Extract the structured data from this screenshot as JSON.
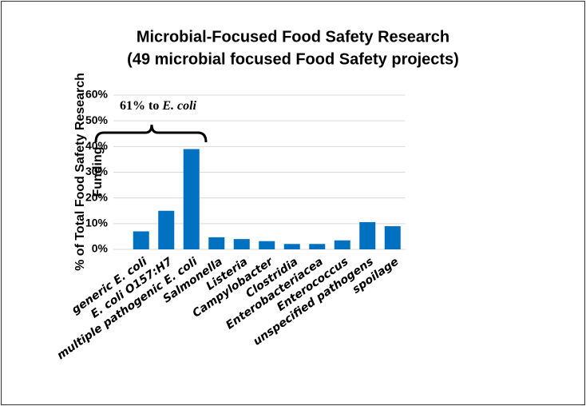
{
  "chart_data": {
    "type": "bar",
    "title": [
      "Microbial-Focused Food Safety Research",
      "(49 microbial focused Food Safety projects)"
    ],
    "ylabel": [
      "% of Total Food Safety Research",
      "Funding"
    ],
    "annotation": {
      "text": "61% to",
      "emphasis": "E. coli"
    },
    "categories": [
      "generic E. coli",
      "E. coli O157:H7",
      "multiple pathogenic E. coli",
      "Salmonella",
      "Listeria",
      "Campylobacter",
      "Clostridia",
      "Enterobacteriacea",
      "Enterococcus",
      "unspecified pathogens",
      "spoilage"
    ],
    "values": [
      7,
      15,
      39,
      4.7,
      4,
      3.2,
      2.1,
      2.1,
      3.5,
      10.6,
      9
    ],
    "color": "#0070c0",
    "ylim": [
      0,
      60
    ],
    "yticks": [
      {
        "value": 0,
        "label": "0%"
      },
      {
        "value": 10,
        "label": "10%"
      },
      {
        "value": 20,
        "label": "20%"
      },
      {
        "value": 30,
        "label": "30%"
      },
      {
        "value": 40,
        "label": "40%"
      },
      {
        "value": 50,
        "label": "50%"
      },
      {
        "value": 60,
        "label": "60%"
      }
    ],
    "grid": true
  }
}
